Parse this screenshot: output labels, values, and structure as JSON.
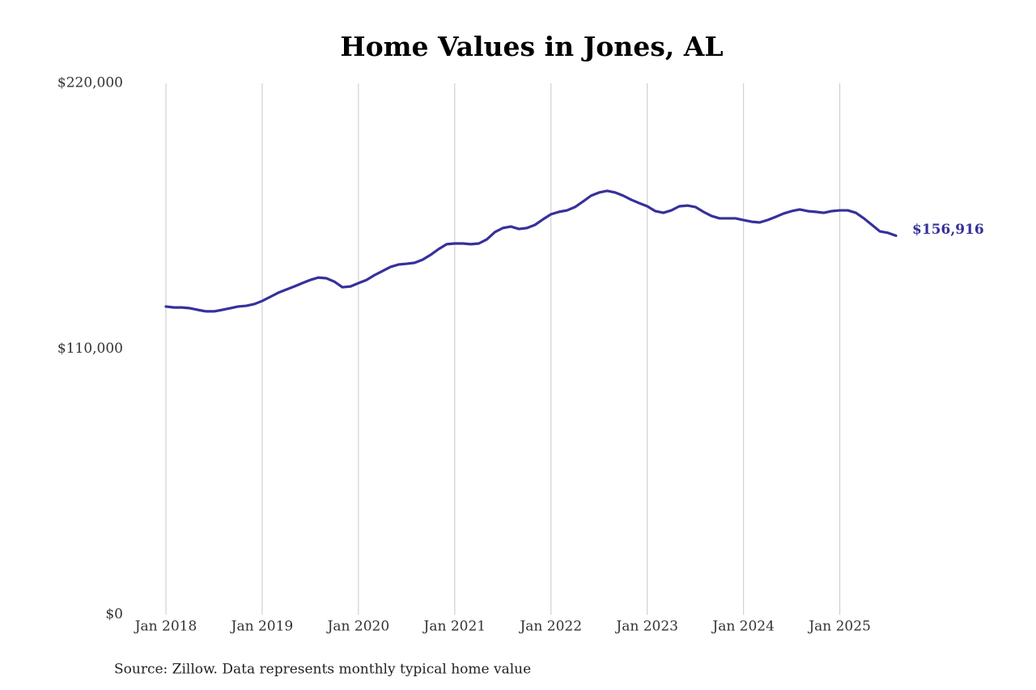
{
  "chart_data": {
    "type": "line",
    "title": "Home Values in Jones, AL",
    "source": "Source: Zillow. Data represents monthly typical home value",
    "color": "#36319a",
    "x": [
      "2018-01",
      "2018-02",
      "2018-03",
      "2018-04",
      "2018-05",
      "2018-06",
      "2018-07",
      "2018-08",
      "2018-09",
      "2018-10",
      "2018-11",
      "2018-12",
      "2019-01",
      "2019-02",
      "2019-03",
      "2019-04",
      "2019-05",
      "2019-06",
      "2019-07",
      "2019-08",
      "2019-09",
      "2019-10",
      "2019-11",
      "2019-12",
      "2020-01",
      "2020-02",
      "2020-03",
      "2020-04",
      "2020-05",
      "2020-06",
      "2020-07",
      "2020-08",
      "2020-09",
      "2020-10",
      "2020-11",
      "2020-12",
      "2021-01",
      "2021-02",
      "2021-03",
      "2021-04",
      "2021-05",
      "2021-06",
      "2021-07",
      "2021-08",
      "2021-09",
      "2021-10",
      "2021-11",
      "2021-12",
      "2022-01",
      "2022-02",
      "2022-03",
      "2022-04",
      "2022-05",
      "2022-06",
      "2022-07",
      "2022-08",
      "2022-09",
      "2022-10",
      "2022-11",
      "2022-12",
      "2023-01",
      "2023-02",
      "2023-03",
      "2023-04",
      "2023-05",
      "2023-06",
      "2023-07",
      "2023-08",
      "2023-09",
      "2023-10",
      "2023-11",
      "2023-12",
      "2024-01",
      "2024-02",
      "2024-03",
      "2024-04",
      "2024-05",
      "2024-06",
      "2024-07",
      "2024-08",
      "2024-09",
      "2024-10",
      "2024-11",
      "2024-12",
      "2025-01",
      "2025-02",
      "2025-03",
      "2025-04",
      "2025-05",
      "2025-06",
      "2025-07",
      "2025-08"
    ],
    "values": [
      127600,
      127200,
      127200,
      126900,
      126200,
      125600,
      125600,
      126200,
      126900,
      127600,
      127900,
      128600,
      129900,
      131600,
      133300,
      134600,
      135900,
      137300,
      138600,
      139600,
      139300,
      137900,
      135600,
      135900,
      137300,
      138600,
      140600,
      142300,
      144000,
      145000,
      145300,
      145700,
      147000,
      149000,
      151400,
      153400,
      153700,
      153700,
      153400,
      153700,
      155400,
      158400,
      160100,
      160700,
      159700,
      160100,
      161400,
      163700,
      165800,
      166800,
      167400,
      168800,
      171100,
      173500,
      174800,
      175500,
      174800,
      173500,
      171800,
      170400,
      169100,
      167100,
      166400,
      167400,
      169100,
      169400,
      168800,
      166800,
      165100,
      164100,
      164100,
      164100,
      163400,
      162700,
      162400,
      163400,
      164700,
      166100,
      167100,
      167800,
      167100,
      166800,
      166400,
      167100,
      167400,
      167400,
      166400,
      164100,
      161400,
      158700,
      158100,
      156916
    ],
    "value_labels": [
      null,
      null,
      null,
      null,
      null,
      null,
      null,
      null,
      null,
      null,
      null,
      null,
      null,
      null,
      null,
      null,
      null,
      null,
      null,
      null,
      null,
      null,
      null,
      null,
      null,
      null,
      null,
      null,
      null,
      null,
      null,
      null,
      null,
      null,
      null,
      null,
      null,
      null,
      null,
      null,
      null,
      null,
      null,
      null,
      null,
      null,
      null,
      null,
      null,
      null,
      null,
      null,
      null,
      null,
      null,
      null,
      null,
      null,
      null,
      null,
      null,
      null,
      null,
      null,
      null,
      null,
      null,
      null,
      null,
      null,
      null,
      null,
      null,
      null,
      null,
      null,
      null,
      null,
      null,
      null,
      null,
      null,
      null,
      null,
      null,
      null,
      null,
      null,
      null,
      null,
      null,
      "$156,916"
    ],
    "xlim": [
      "2018-01",
      "2025-08"
    ],
    "xticks": [
      {
        "value": "2018-01",
        "label": "Jan 2018"
      },
      {
        "value": "2019-01",
        "label": "Jan 2019"
      },
      {
        "value": "2020-01",
        "label": "Jan 2020"
      },
      {
        "value": "2021-01",
        "label": "Jan 2021"
      },
      {
        "value": "2022-01",
        "label": "Jan 2022"
      },
      {
        "value": "2023-01",
        "label": "Jan 2023"
      },
      {
        "value": "2024-01",
        "label": "Jan 2024"
      },
      {
        "value": "2025-01",
        "label": "Jan 2025"
      }
    ],
    "ylim": [
      0,
      220000
    ],
    "yticks": [
      {
        "value": 0,
        "label": "$0"
      },
      {
        "value": 110000,
        "label": "$110,000"
      },
      {
        "value": 220000,
        "label": "$220,000"
      }
    ],
    "grid": "x"
  }
}
